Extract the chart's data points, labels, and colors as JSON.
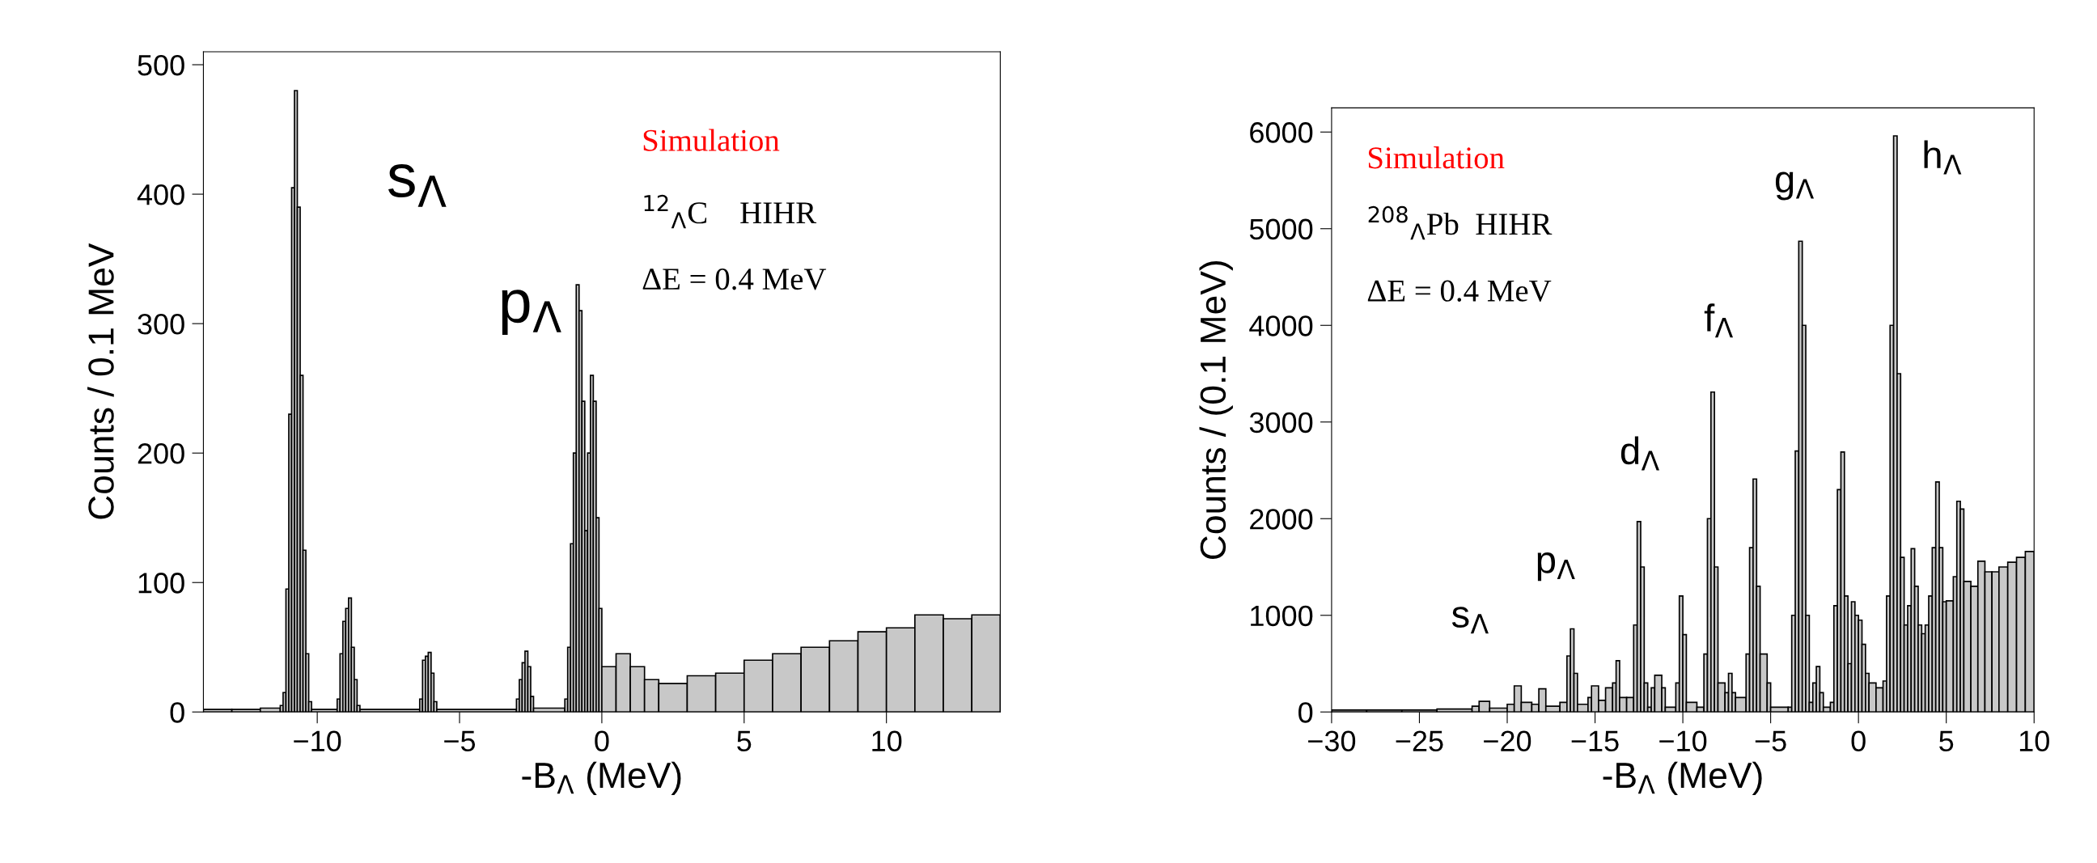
{
  "chart_data": [
    {
      "type": "histogram",
      "xlabel": "-B$_{Λ}$ (MeV)",
      "ylabel": "Counts / 0.1 MeV",
      "color": "#c8c8c8",
      "bins": [
        -14,
        -13,
        -12,
        -11.3,
        -11.2,
        -11.1,
        -11.0,
        -10.9,
        -10.8,
        -10.7,
        -10.6,
        -10.5,
        -10.4,
        -10.3,
        -10.2,
        -9.3,
        -9.2,
        -9.1,
        -9.0,
        -8.9,
        -8.8,
        -8.7,
        -8.6,
        -8.5,
        -6.4,
        -6.3,
        -6.2,
        -6.1,
        -6.0,
        -5.9,
        -5.8,
        -3.0,
        -2.9,
        -2.8,
        -2.7,
        -2.6,
        -2.5,
        -2.4,
        -1.3,
        -1.2,
        -1.1,
        -1.0,
        -0.9,
        -0.8,
        -0.7,
        -0.6,
        -0.5,
        -0.4,
        -0.3,
        -0.2,
        -0.1,
        0.0,
        0.5,
        1.0,
        1.5,
        2,
        3,
        4,
        5,
        6,
        7,
        8,
        9,
        10,
        11,
        12,
        13,
        14
      ],
      "values": [
        2,
        2,
        3,
        5,
        15,
        95,
        230,
        405,
        480,
        390,
        260,
        125,
        45,
        8,
        2,
        10,
        45,
        70,
        80,
        88,
        50,
        25,
        5,
        2,
        10,
        40,
        43,
        46,
        30,
        8,
        2,
        10,
        25,
        38,
        47,
        35,
        12,
        3,
        10,
        50,
        130,
        200,
        330,
        310,
        240,
        140,
        200,
        260,
        240,
        150,
        80,
        35,
        45,
        35,
        25,
        22,
        28,
        30,
        40,
        45,
        50,
        55,
        62,
        65,
        75,
        72,
        75
      ],
      "xlim": [
        -14,
        14
      ],
      "ylim": [
        0,
        510
      ],
      "xticks": [
        -10,
        -5,
        0,
        5,
        10
      ],
      "yticks": [
        0,
        100,
        200,
        300,
        400,
        500
      ],
      "annotations": [
        "s$_{Λ}$",
        "p$_{Λ}$",
        "Simulation",
        "$^{12}$$_{Λ}$C    HIHR",
        "ΔE = 0.4 MeV"
      ]
    },
    {
      "type": "histogram",
      "xlabel": "-B$_{Λ}$ (MeV)",
      "ylabel": "Counts / (0.1 MeV)",
      "color": "#c8c8c8",
      "bins": [
        -30,
        -28,
        -26,
        -24,
        -22,
        -21.6,
        -21.0,
        -20.0,
        -19.6,
        -19.2,
        -18.6,
        -18.2,
        -17.8,
        -17.0,
        -16.6,
        -16.4,
        -16.2,
        -16.0,
        -15.4,
        -15.2,
        -14.8,
        -14.4,
        -14.0,
        -13.8,
        -13.6,
        -13.2,
        -12.8,
        -12.6,
        -12.4,
        -12.2,
        -12.0,
        -11.8,
        -11.6,
        -11.2,
        -11.0,
        -10.4,
        -10.2,
        -10.0,
        -9.8,
        -9.2,
        -8.8,
        -8.6,
        -8.4,
        -8.2,
        -8.0,
        -7.6,
        -7.4,
        -7.2,
        -7.0,
        -6.4,
        -6.2,
        -6.0,
        -5.8,
        -5.6,
        -5.2,
        -5.0,
        -4.0,
        -3.8,
        -3.6,
        -3.4,
        -3.2,
        -3.0,
        -2.8,
        -2.6,
        -2.4,
        -2.2,
        -2.0,
        -1.6,
        -1.4,
        -1.2,
        -1.0,
        -0.8,
        -0.6,
        -0.4,
        -0.2,
        0.0,
        0.2,
        0.4,
        0.6,
        1.0,
        1.4,
        1.6,
        1.8,
        2.0,
        2.2,
        2.4,
        2.6,
        2.8,
        3.0,
        3.2,
        3.4,
        3.6,
        3.8,
        4.0,
        4.2,
        4.4,
        4.6,
        4.8,
        5.0,
        5.4,
        5.6,
        5.8,
        6.0,
        6.4,
        6.8,
        7.2,
        7.6,
        8.0,
        8.5,
        9.0,
        9.5,
        10
      ],
      "values": [
        20,
        20,
        20,
        30,
        60,
        110,
        40,
        80,
        270,
        100,
        80,
        240,
        60,
        100,
        580,
        860,
        400,
        80,
        150,
        270,
        120,
        250,
        300,
        530,
        150,
        150,
        900,
        1970,
        1500,
        300,
        50,
        250,
        380,
        250,
        50,
        300,
        1200,
        800,
        100,
        50,
        600,
        2000,
        3310,
        1500,
        300,
        200,
        400,
        200,
        150,
        600,
        1700,
        2410,
        1300,
        600,
        300,
        50,
        50,
        1000,
        2700,
        4870,
        4000,
        1000,
        100,
        300,
        470,
        200,
        50,
        100,
        1100,
        2300,
        2690,
        1200,
        500,
        1140,
        1000,
        950,
        700,
        400,
        300,
        250,
        320,
        1200,
        4000,
        5960,
        3500,
        1600,
        900,
        1100,
        1690,
        1300,
        900,
        810,
        900,
        1200,
        1700,
        2380,
        1700,
        1140,
        1150,
        1400,
        2180,
        2100,
        1350,
        1300,
        1560,
        1450,
        1450,
        1500,
        1550,
        1600,
        1660
      ],
      "xlim": [
        -30,
        10
      ],
      "ylim": [
        0,
        6250
      ],
      "xticks": [
        -30,
        -25,
        -20,
        -15,
        -10,
        -5,
        0,
        5,
        10
      ],
      "yticks": [
        0,
        1000,
        2000,
        3000,
        4000,
        5000,
        6000
      ],
      "annotations": [
        "s$_{Λ}$",
        "p$_{Λ}$",
        "d$_{Λ}$",
        "f$_{Λ}$",
        "g$_{Λ}$",
        "h$_{Λ}$",
        "Simulation",
        "$^{208}$$_{Λ}$Pb  HIHR",
        "ΔE = 0.4 MeV"
      ]
    }
  ]
}
